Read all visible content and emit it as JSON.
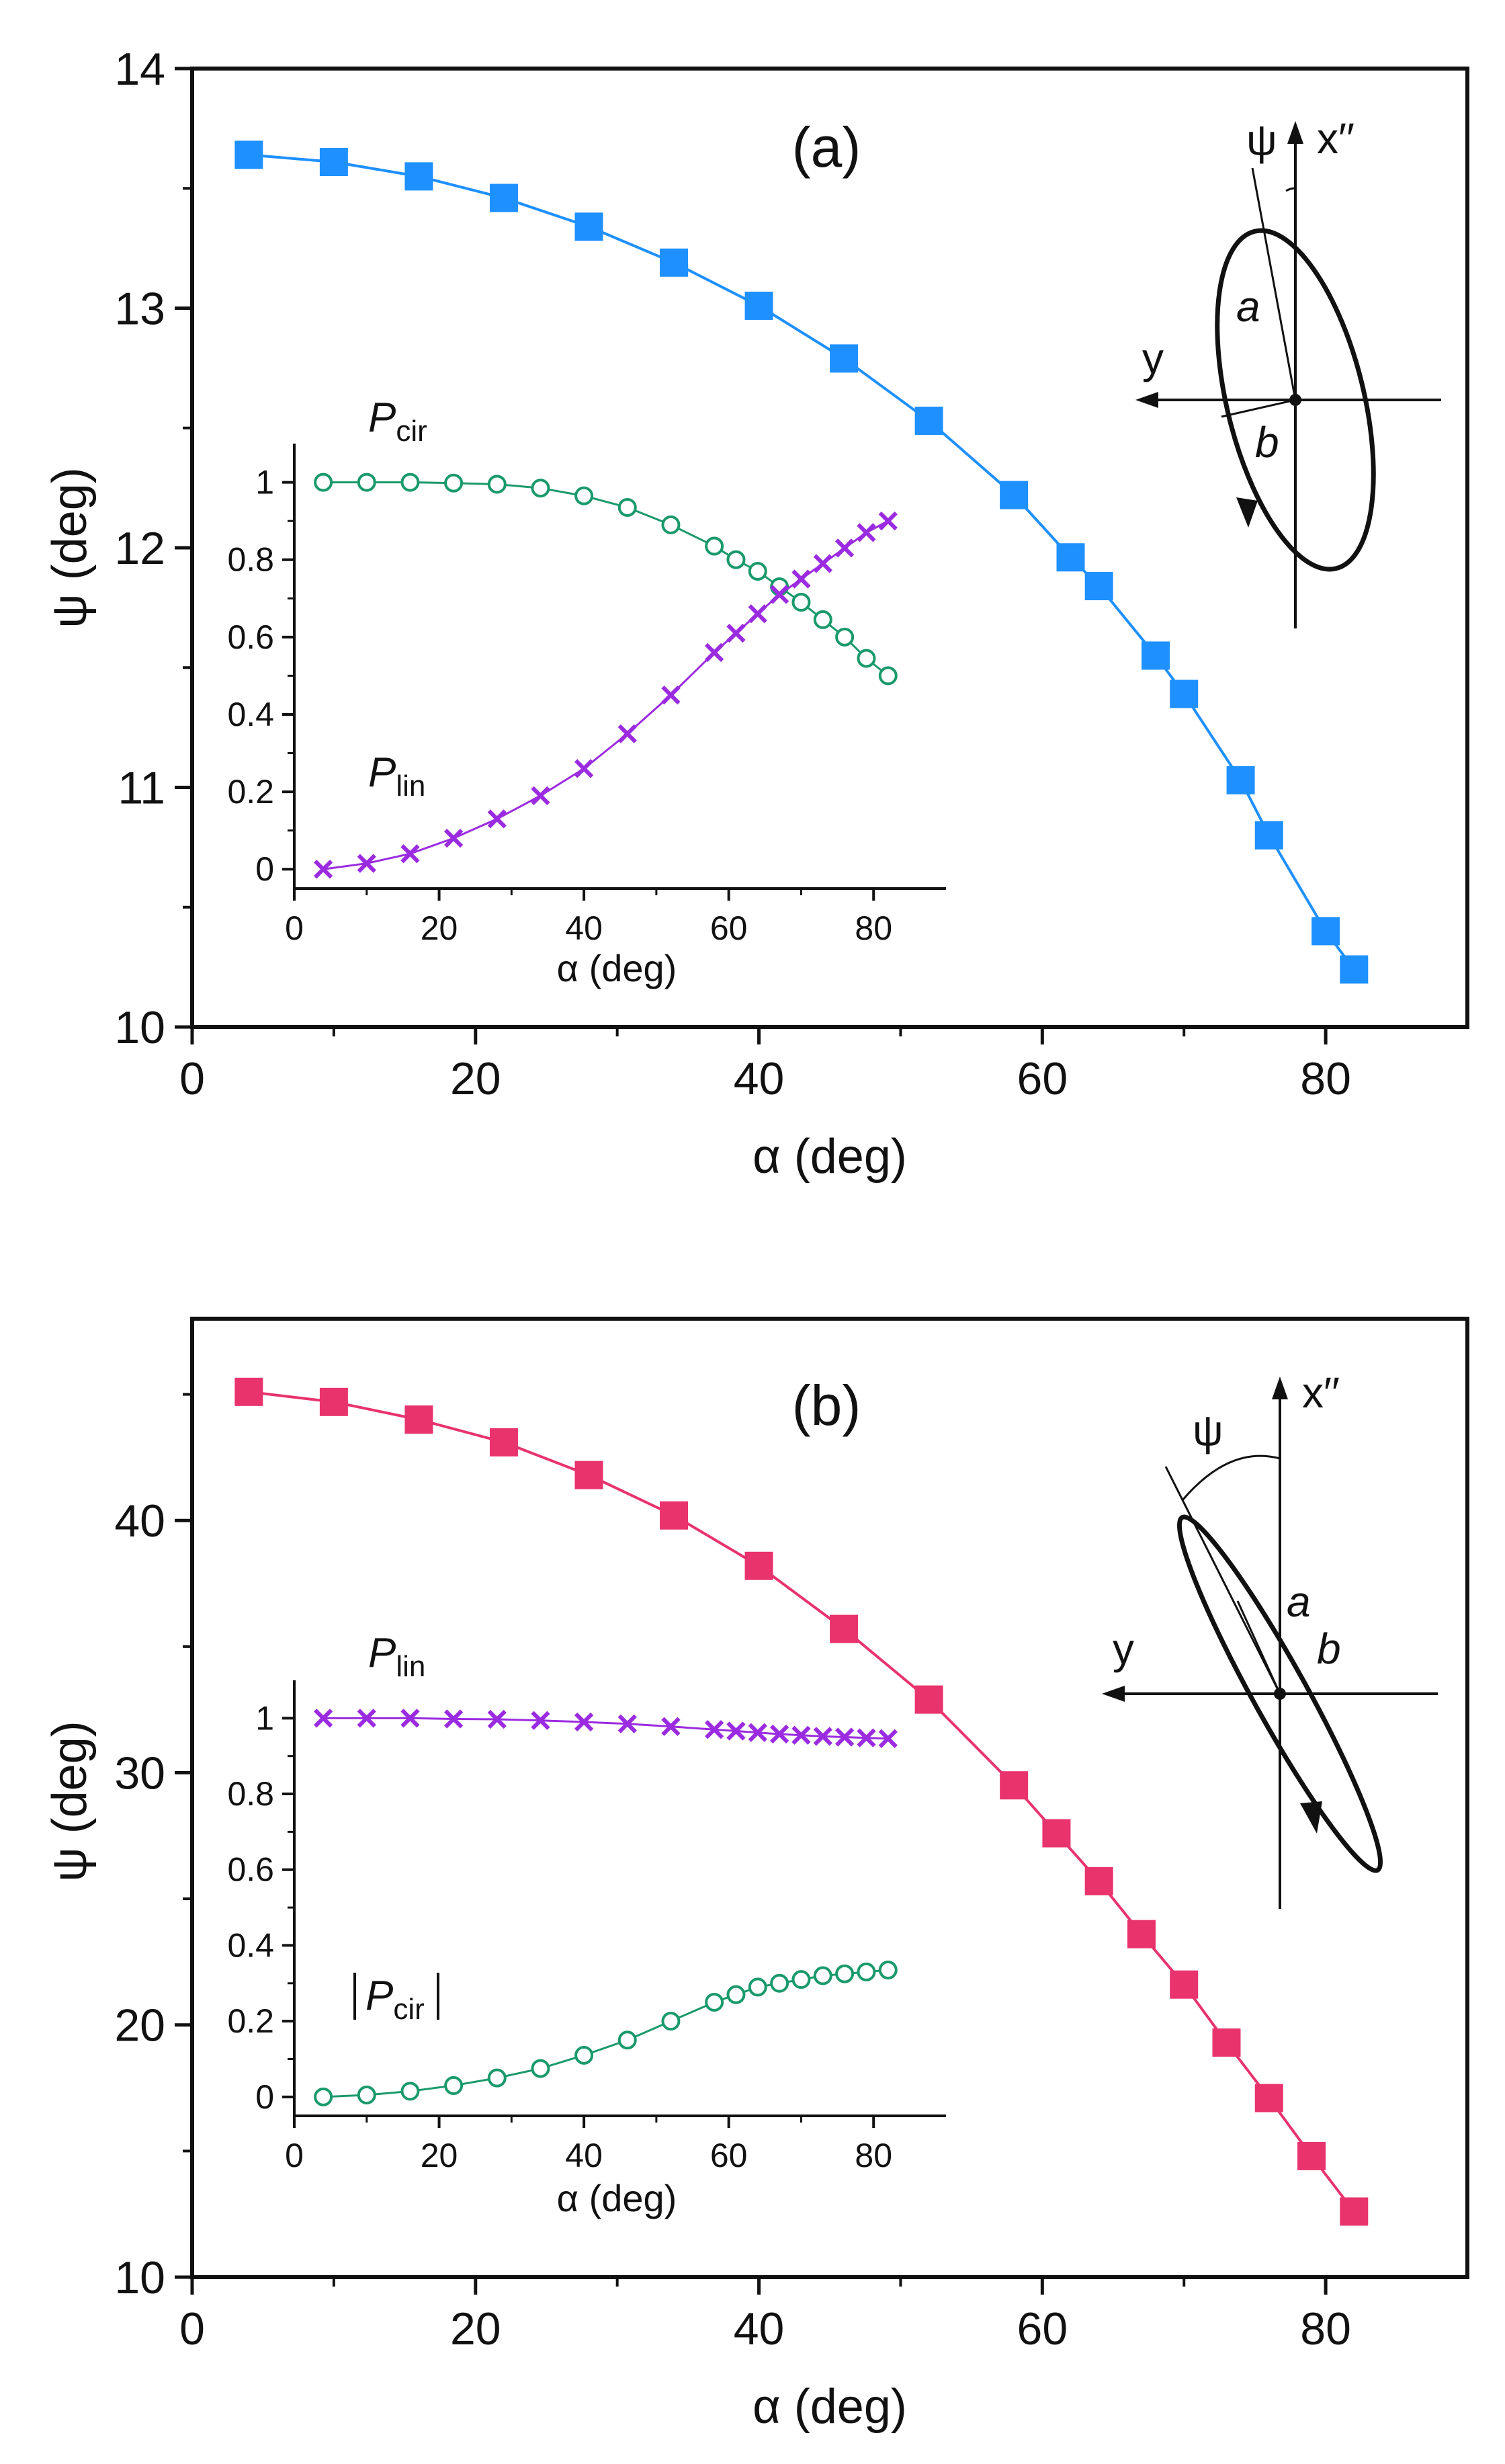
{
  "chart_data": [
    {
      "panel": "(a)",
      "type": "line",
      "xlabel": "α (deg)",
      "ylabel": "ψ (deg)",
      "xlim": [
        0,
        90
      ],
      "ylim": [
        10,
        14
      ],
      "xticks": [
        0,
        20,
        40,
        60,
        80
      ],
      "yticks": [
        10,
        11,
        12,
        13,
        14
      ],
      "color": "#1e90ff",
      "marker": "square",
      "x": [
        4,
        10,
        16,
        22,
        28,
        34,
        40,
        46,
        52,
        58,
        62,
        64,
        68,
        70,
        74,
        76,
        80,
        82
      ],
      "y": [
        13.64,
        13.61,
        13.55,
        13.46,
        13.34,
        13.19,
        13.01,
        12.79,
        12.53,
        12.22,
        11.96,
        11.84,
        11.55,
        11.39,
        11.03,
        10.8,
        10.4,
        10.24
      ],
      "inset": {
        "xlabel": "α (deg)",
        "xlim": [
          0,
          90
        ],
        "ylim": [
          -0.05,
          1.1
        ],
        "xticks": [
          0,
          20,
          40,
          60,
          80
        ],
        "yticks": [
          0,
          0.2,
          0.4,
          0.6,
          0.8,
          1
        ],
        "ytick_labels": [
          "0",
          "0.2",
          "0.4",
          "0.6",
          "0.8",
          "1"
        ],
        "series": [
          {
            "name": "P_cir",
            "label_main": "P",
            "label_sub": "cir",
            "color": "#1a9a6a",
            "marker": "circle",
            "x": [
              4,
              10,
              16,
              22,
              28,
              34,
              40,
              46,
              52,
              58,
              61,
              64,
              67,
              70,
              73,
              76,
              79,
              82
            ],
            "y": [
              1.0,
              1.0,
              1.0,
              0.998,
              0.995,
              0.985,
              0.965,
              0.935,
              0.89,
              0.835,
              0.8,
              0.77,
              0.73,
              0.69,
              0.645,
              0.6,
              0.545,
              0.5
            ]
          },
          {
            "name": "P_lin",
            "label_main": "P",
            "label_sub": "lin",
            "color": "#9b2be0",
            "marker": "x",
            "x": [
              4,
              10,
              16,
              22,
              28,
              34,
              40,
              46,
              52,
              58,
              61,
              64,
              67,
              70,
              73,
              76,
              79,
              82
            ],
            "y": [
              0.0,
              0.015,
              0.04,
              0.08,
              0.13,
              0.19,
              0.26,
              0.35,
              0.45,
              0.56,
              0.61,
              0.66,
              0.71,
              0.75,
              0.79,
              0.83,
              0.87,
              0.9
            ]
          }
        ]
      },
      "diagram": {
        "psi": "ψ",
        "axis_x": "x′′",
        "axis_y": "y",
        "a": "a",
        "b": "b"
      }
    },
    {
      "panel": "(b)",
      "type": "line",
      "xlabel": "α (deg)",
      "ylabel": "ψ (deg)",
      "xlim": [
        0,
        90
      ],
      "ylim": [
        10,
        48
      ],
      "xticks": [
        0,
        20,
        40,
        60,
        80
      ],
      "yticks": [
        10,
        20,
        30,
        40
      ],
      "color": "#e8336d",
      "marker": "square",
      "x": [
        4,
        10,
        16,
        22,
        28,
        34,
        40,
        46,
        52,
        58,
        61,
        64,
        67,
        70,
        73,
        76,
        79,
        82
      ],
      "y": [
        45.1,
        44.7,
        44.0,
        43.1,
        41.8,
        40.2,
        38.2,
        35.7,
        32.9,
        29.5,
        27.6,
        25.7,
        23.6,
        21.6,
        19.3,
        17.1,
        14.8,
        12.6
      ],
      "inset": {
        "xlabel": "α (deg)",
        "xlim": [
          0,
          90
        ],
        "ylim": [
          -0.05,
          1.1
        ],
        "xticks": [
          0,
          20,
          40,
          60,
          80
        ],
        "yticks": [
          0,
          0.2,
          0.4,
          0.6,
          0.8,
          1
        ],
        "ytick_labels": [
          "0",
          "0.2",
          "0.4",
          "0.6",
          "0.8",
          "1"
        ],
        "series": [
          {
            "name": "P_lin",
            "label_main": "P",
            "label_sub": "lin",
            "color": "#9b2be0",
            "marker": "x",
            "x": [
              4,
              10,
              16,
              22,
              28,
              34,
              40,
              46,
              52,
              58,
              61,
              64,
              67,
              70,
              73,
              76,
              79,
              82
            ],
            "y": [
              1.0,
              1.0,
              1.0,
              0.998,
              0.997,
              0.994,
              0.99,
              0.985,
              0.978,
              0.97,
              0.966,
              0.962,
              0.958,
              0.955,
              0.952,
              0.95,
              0.948,
              0.946
            ]
          },
          {
            "name": "|P_cir|",
            "label_main": "P",
            "label_sub": "cir",
            "color": "#1a9a6a",
            "marker": "circle",
            "x": [
              4,
              10,
              16,
              22,
              28,
              34,
              40,
              46,
              52,
              58,
              61,
              64,
              67,
              70,
              73,
              76,
              79,
              82
            ],
            "y": [
              0.0,
              0.005,
              0.015,
              0.03,
              0.05,
              0.075,
              0.11,
              0.15,
              0.2,
              0.25,
              0.27,
              0.29,
              0.3,
              0.31,
              0.32,
              0.325,
              0.33,
              0.335
            ]
          }
        ]
      },
      "diagram": {
        "psi": "ψ",
        "axis_x": "x′′",
        "axis_y": "y",
        "a": "a",
        "b": "b"
      }
    }
  ]
}
